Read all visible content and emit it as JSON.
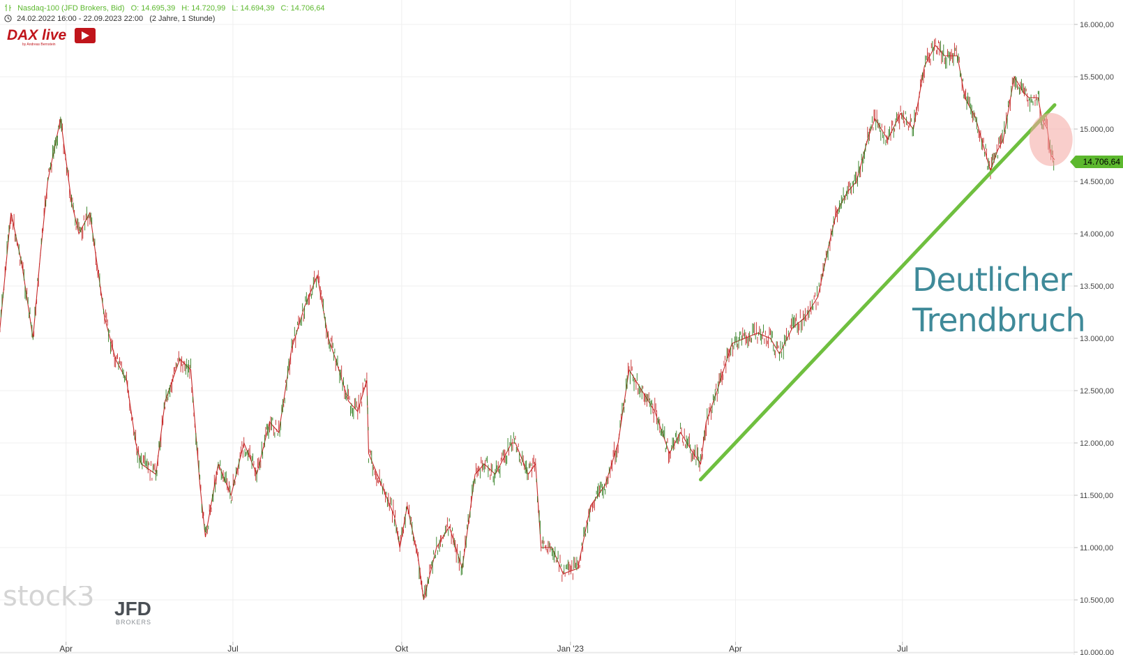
{
  "header": {
    "instrument": "Nasdaq-100 (JFD Brokers, Bid)",
    "open": "O: 14.695,39",
    "high": "H: 14.720,99",
    "low": "L: 14.694,39",
    "close": "C: 14.706,64",
    "period": "24.02.2022 16:00 - 22.09.2023 22:00",
    "range": "(2 Jahre, 1 Stunde)"
  },
  "logos": {
    "dax_live": "DAX live",
    "dax_live_sub": "by Andreas Bernstein",
    "stock3": "stock3",
    "jfd": "JFD",
    "jfd_sub": "BROKERS"
  },
  "annotation": {
    "line1": "Deutlicher",
    "line2": "Trendbruch"
  },
  "price_badge": "14.706,64",
  "colors": {
    "up": "#2e7d1e",
    "down": "#c62828",
    "trendline": "#6fbf3f",
    "highlight": "#f4a6a0",
    "annotation": "#3f8a99",
    "badge": "#5cb82e"
  },
  "chart_data": {
    "type": "line",
    "title": "Nasdaq-100 (JFD Brokers, Bid)",
    "x_ticks": [
      "Apr",
      "Jul",
      "Okt",
      "Jan '23",
      "Apr",
      "Jul"
    ],
    "y_ticks": [
      "16.000,00",
      "15.500,00",
      "15.000,00",
      "14.500,00",
      "14.000,00",
      "13.500,00",
      "13.000,00",
      "12.500,00",
      "12.000,00",
      "11.500,00",
      "11.000,00",
      "10.500,00",
      "10.000,00"
    ],
    "ylim": [
      10000,
      16000
    ],
    "xlim": [
      "2022-02-24",
      "2023-09-22"
    ],
    "grid": true,
    "series": [
      {
        "x": [
          "2022-02-24",
          "2022-03-02",
          "2022-03-08",
          "2022-03-14",
          "2022-03-18",
          "2022-03-22",
          "2022-03-29",
          "2022-04-04",
          "2022-04-08",
          "2022-04-14",
          "2022-04-22",
          "2022-04-28",
          "2022-05-04",
          "2022-05-09",
          "2022-05-12",
          "2022-05-20",
          "2022-05-25",
          "2022-06-02",
          "2022-06-08",
          "2022-06-13",
          "2022-06-16",
          "2022-06-23",
          "2022-06-30",
          "2022-07-07",
          "2022-07-14",
          "2022-07-21",
          "2022-07-26",
          "2022-08-02",
          "2022-08-09",
          "2022-08-16",
          "2022-08-22",
          "2022-08-26",
          "2022-09-02",
          "2022-09-07",
          "2022-09-12",
          "2022-09-13",
          "2022-09-20",
          "2022-09-27",
          "2022-09-30",
          "2022-10-04",
          "2022-10-10",
          "2022-10-13",
          "2022-10-20",
          "2022-10-27",
          "2022-11-03",
          "2022-11-10",
          "2022-11-15",
          "2022-11-21",
          "2022-11-30",
          "2022-12-02",
          "2022-12-09",
          "2022-12-13",
          "2022-12-16",
          "2022-12-22",
          "2022-12-28",
          "2023-01-05",
          "2023-01-12",
          "2023-01-20",
          "2023-01-27",
          "2023-02-02",
          "2023-02-09",
          "2023-02-16",
          "2023-02-24",
          "2023-03-02",
          "2023-03-09",
          "2023-03-13",
          "2023-03-16",
          "2023-03-22",
          "2023-03-30",
          "2023-04-06",
          "2023-04-13",
          "2023-04-20",
          "2023-04-25",
          "2023-05-02",
          "2023-05-09",
          "2023-05-16",
          "2023-05-22",
          "2023-05-26",
          "2023-06-01",
          "2023-06-06",
          "2023-06-12",
          "2023-06-16",
          "2023-06-23",
          "2023-06-30",
          "2023-07-07",
          "2023-07-13",
          "2023-07-19",
          "2023-07-24",
          "2023-07-31",
          "2023-08-04",
          "2023-08-10",
          "2023-08-18",
          "2023-08-22",
          "2023-08-25",
          "2023-08-31",
          "2023-09-05",
          "2023-09-08",
          "2023-09-13",
          "2023-09-15",
          "2023-09-18",
          "2023-09-20",
          "2023-09-22"
        ],
        "values": [
          13100,
          14200,
          13700,
          13000,
          13800,
          14500,
          15100,
          14300,
          14000,
          14200,
          13200,
          12800,
          12600,
          12000,
          11800,
          11700,
          12400,
          12800,
          12700,
          11600,
          11100,
          11800,
          11500,
          12000,
          11700,
          12200,
          12100,
          12900,
          13300,
          13600,
          13000,
          12800,
          12400,
          12300,
          12600,
          11900,
          11600,
          11300,
          11000,
          11400,
          10900,
          10500,
          11000,
          11200,
          10800,
          11700,
          11800,
          11700,
          12000,
          12000,
          11700,
          11800,
          11000,
          11000,
          10750,
          10800,
          11400,
          11600,
          12000,
          12700,
          12500,
          12300,
          11900,
          12100,
          11900,
          11800,
          12200,
          12500,
          12950,
          13000,
          13050,
          13000,
          12850,
          13100,
          13200,
          13400,
          13900,
          14200,
          14400,
          14500,
          14900,
          15100,
          14900,
          15150,
          15000,
          15600,
          15800,
          15700,
          15700,
          15300,
          15100,
          14600,
          14800,
          14900,
          15500,
          15350,
          15300,
          15300,
          15100,
          15000,
          14750,
          14706
        ]
      }
    ],
    "trendline": {
      "from": {
        "x": "2023-03-13",
        "y": 11650
      },
      "to": {
        "x": "2023-09-22",
        "y": 15230
      }
    },
    "highlight": {
      "x": "2023-09-20",
      "y": 14900
    },
    "last_price": 14706.64
  }
}
